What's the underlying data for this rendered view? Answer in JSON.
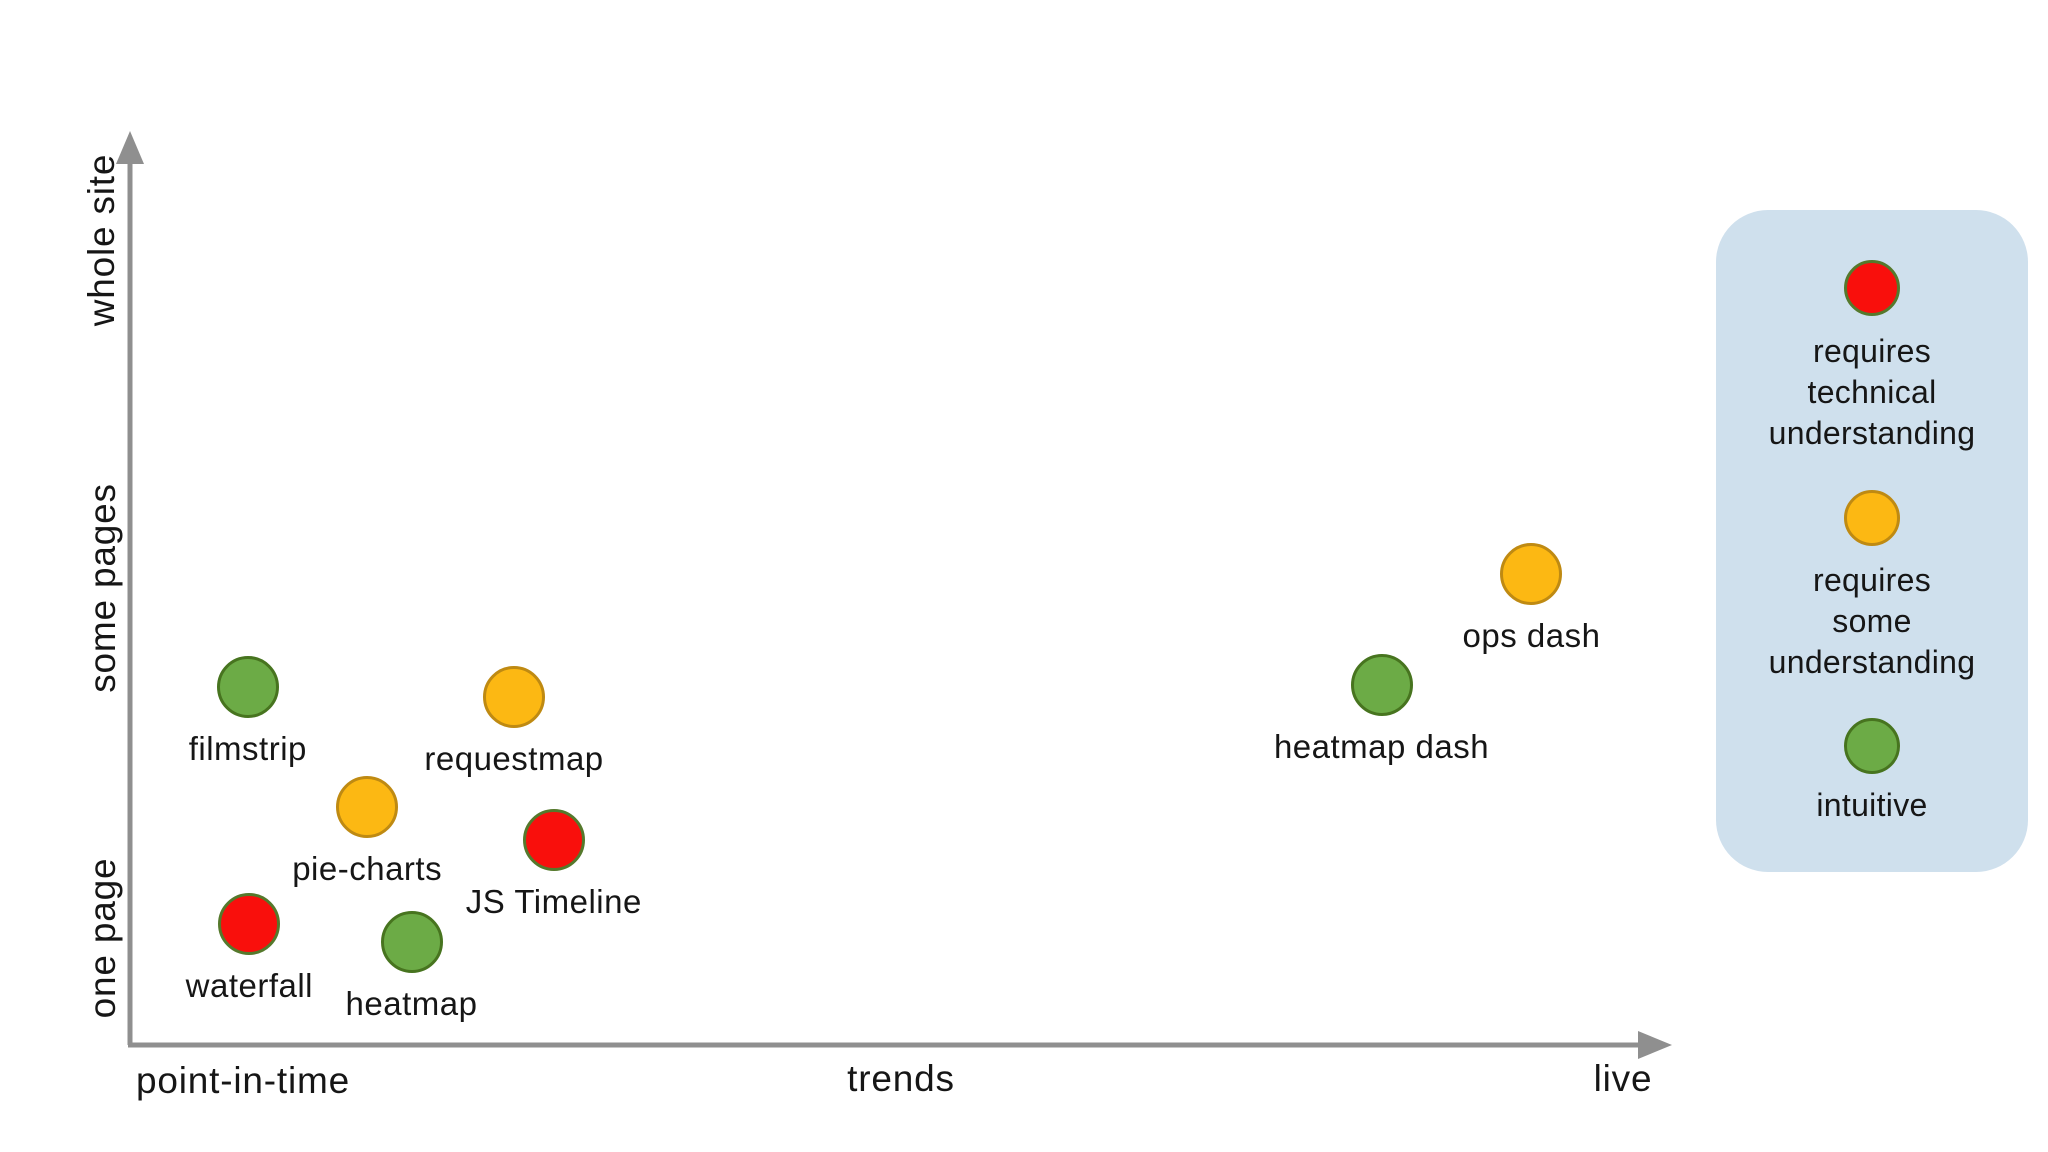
{
  "chart_data": {
    "type": "scatter",
    "title": "",
    "x_axis": {
      "labels": [
        "point-in-time",
        "trends",
        "live"
      ]
    },
    "y_axis": {
      "labels": [
        "one page",
        "some pages",
        "whole site"
      ]
    },
    "points": [
      {
        "name": "filmstrip",
        "level": "intuitive",
        "x": 0.077,
        "y": 0.396
      },
      {
        "name": "requestmap",
        "level": "some",
        "x": 0.251,
        "y": 0.385
      },
      {
        "name": "pie-charts",
        "level": "some",
        "x": 0.155,
        "y": 0.263
      },
      {
        "name": "JS Timeline",
        "level": "technical",
        "x": 0.277,
        "y": 0.227
      },
      {
        "name": "waterfall",
        "level": "technical",
        "x": 0.078,
        "y": 0.134
      },
      {
        "name": "heatmap",
        "level": "intuitive",
        "x": 0.184,
        "y": 0.114
      },
      {
        "name": "heatmap dash",
        "level": "intuitive",
        "x": 0.818,
        "y": 0.398
      },
      {
        "name": "ops dash",
        "level": "some",
        "x": 0.916,
        "y": 0.52
      }
    ],
    "legend": {
      "position": "right",
      "items": [
        {
          "level": "technical",
          "lines": [
            "requires",
            "technical",
            "understanding"
          ]
        },
        {
          "level": "some",
          "lines": [
            "requires",
            "some",
            "understanding"
          ]
        },
        {
          "level": "intuitive",
          "lines": [
            "intuitive"
          ]
        }
      ]
    },
    "layout": {
      "grid": false,
      "x_arrow": true,
      "y_arrow": true
    }
  },
  "colors": {
    "technical_fill": "#f90f0c",
    "technical_stroke": "#55792c",
    "some_fill": "#fcb813",
    "some_stroke": "#bf8a12",
    "intuitive_fill": "#6cab46",
    "intuitive_stroke": "#47741f",
    "axis": "#8f8f8f",
    "legend_bg": "#cfe0ed",
    "text": "#161616"
  }
}
